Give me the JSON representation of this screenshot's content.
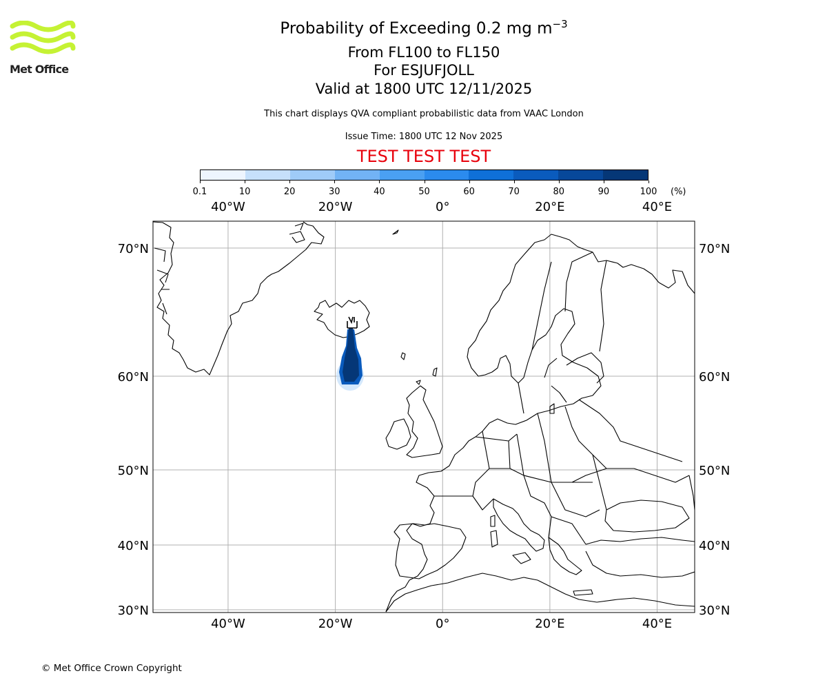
{
  "logo": {
    "text": "Met Office"
  },
  "header": {
    "title_main": "Probability of Exceeding 0.2 mg m",
    "title_exp": "−3",
    "levels": "From FL100 to FL150",
    "volcano": "For ESJUFJOLL",
    "valid": "Valid at 1800 UTC 12/11/2025",
    "description": "This chart displays QVA compliant probabilistic data from VAAC London",
    "issue_time": "Issue Time: 1800 UTC 12 Nov 2025",
    "test_banner": "TEST TEST TEST"
  },
  "colorbar": {
    "ticks": [
      "0.1",
      "10",
      "20",
      "30",
      "40",
      "50",
      "60",
      "70",
      "80",
      "90",
      "100"
    ],
    "unit": "(%)",
    "colors": [
      "#eef5fe",
      "#c6e0fb",
      "#9fcbf8",
      "#72b3f5",
      "#4aa0f2",
      "#2b8bee",
      "#0f70d8",
      "#0a5bbd",
      "#07489a",
      "#053777"
    ]
  },
  "map": {
    "lon_labels": [
      "40°W",
      "20°W",
      "0°",
      "20°E",
      "40°E"
    ],
    "lat_labels": [
      "70°N",
      "60°N",
      "50°N",
      "40°N",
      "30°N"
    ]
  },
  "chart_data": {
    "type": "map",
    "title": "Probability of Exceeding 0.2 mg m−3",
    "lon_range": [
      -54,
      47
    ],
    "lat_range": [
      30,
      73
    ],
    "lon_ticks": [
      -40,
      -20,
      0,
      20,
      40
    ],
    "lat_ticks": [
      70,
      60,
      50,
      40,
      30
    ],
    "plume": {
      "source": {
        "lon": -17,
        "lat": 64.3
      },
      "axis": [
        {
          "lon": -17.0,
          "lat": 63.9,
          "probability": 90
        },
        {
          "lon": -17.0,
          "lat": 62.5,
          "probability": 90
        },
        {
          "lon": -16.9,
          "lat": 61.0,
          "probability": 90
        },
        {
          "lon": -17.0,
          "lat": 60.0,
          "probability": 80
        },
        {
          "lon": -17.2,
          "lat": 59.5,
          "probability": 20
        }
      ]
    },
    "copyright": "© Met Office Crown Copyright"
  }
}
